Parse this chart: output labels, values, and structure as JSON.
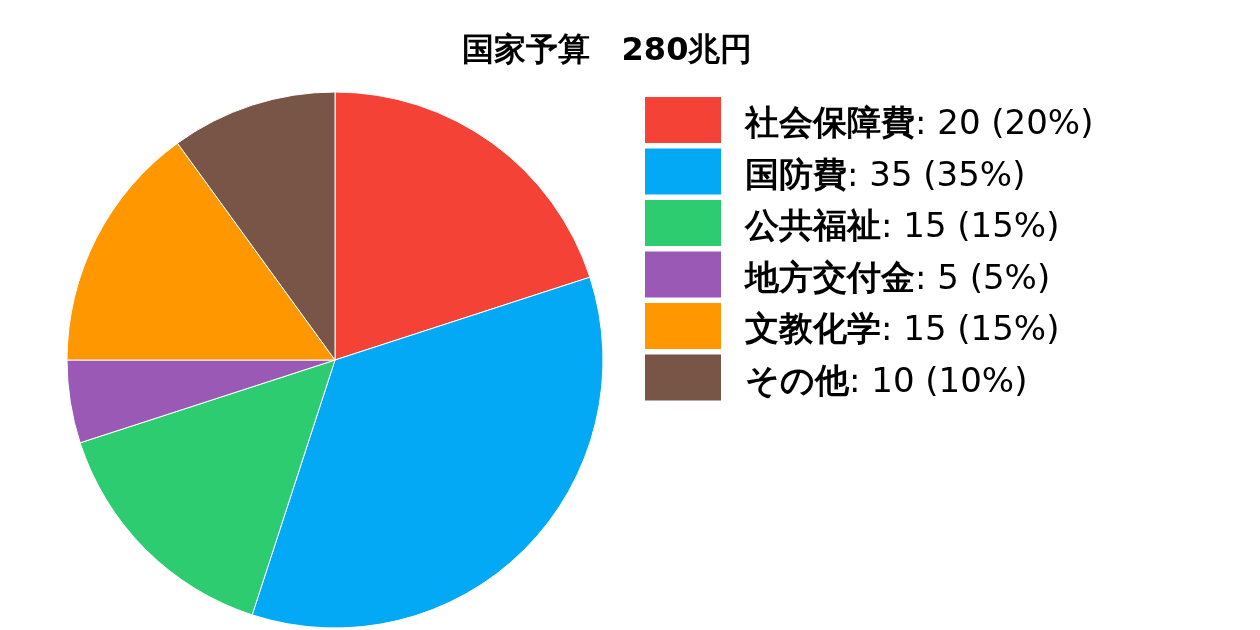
{
  "chart_data": {
    "type": "pie",
    "title": "国家予算　280兆円",
    "categories": [
      "社会保障費",
      "国防費",
      "公共福祉",
      "地方交付金",
      "文教化学",
      "その他"
    ],
    "values": [
      20,
      35,
      15,
      5,
      15,
      10
    ],
    "value_labels": [
      ": 20 (20%)",
      ": 35 (35%)",
      ": 15 (15%)",
      ": 5 (5%)",
      ": 15 (15%)",
      ": 10 (10%)"
    ],
    "colors": [
      "#f44336",
      "#03a9f4",
      "#2ecc71",
      "#9b59b6",
      "#ff9800",
      "#795548"
    ],
    "legend": "right"
  }
}
